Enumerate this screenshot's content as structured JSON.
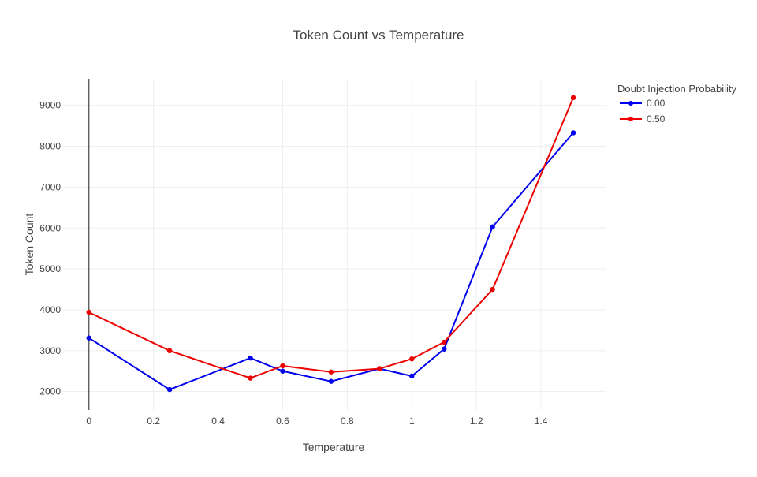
{
  "chart_data": {
    "type": "line",
    "title": "Token Count vs Temperature",
    "xlabel": "Temperature",
    "ylabel": "Token Count",
    "xlim": [
      -0.08,
      1.6
    ],
    "ylim": [
      1550,
      9650
    ],
    "xticks": [
      0,
      0.2,
      0.4,
      0.6,
      0.8,
      1,
      1.2,
      1.4
    ],
    "xtick_labels": [
      "0",
      "0.2",
      "0.4",
      "0.6",
      "0.8",
      "1",
      "1.2",
      "1.4"
    ],
    "yticks": [
      2000,
      3000,
      4000,
      5000,
      6000,
      7000,
      8000,
      9000
    ],
    "ytick_labels": [
      "2000",
      "3000",
      "4000",
      "5000",
      "6000",
      "7000",
      "8000",
      "9000"
    ],
    "grid": true,
    "legend": {
      "title": "Doubt Injection Probability",
      "placement": "top-right outside"
    },
    "series": [
      {
        "name": "0.00",
        "color": "#0000ee",
        "x": [
          0,
          0.25,
          0.5,
          0.6,
          0.75,
          0.9,
          1.0,
          1.1,
          1.25,
          1.5
        ],
        "y": [
          3310,
          2050,
          2820,
          2500,
          2250,
          2560,
          2380,
          3040,
          6030,
          8330
        ]
      },
      {
        "name": "0.50",
        "color": "#ee0000",
        "x": [
          0,
          0.25,
          0.5,
          0.6,
          0.75,
          0.9,
          1.0,
          1.1,
          1.25,
          1.5
        ],
        "y": [
          3940,
          3000,
          2330,
          2630,
          2480,
          2560,
          2800,
          3210,
          4500,
          9190
        ]
      }
    ]
  }
}
